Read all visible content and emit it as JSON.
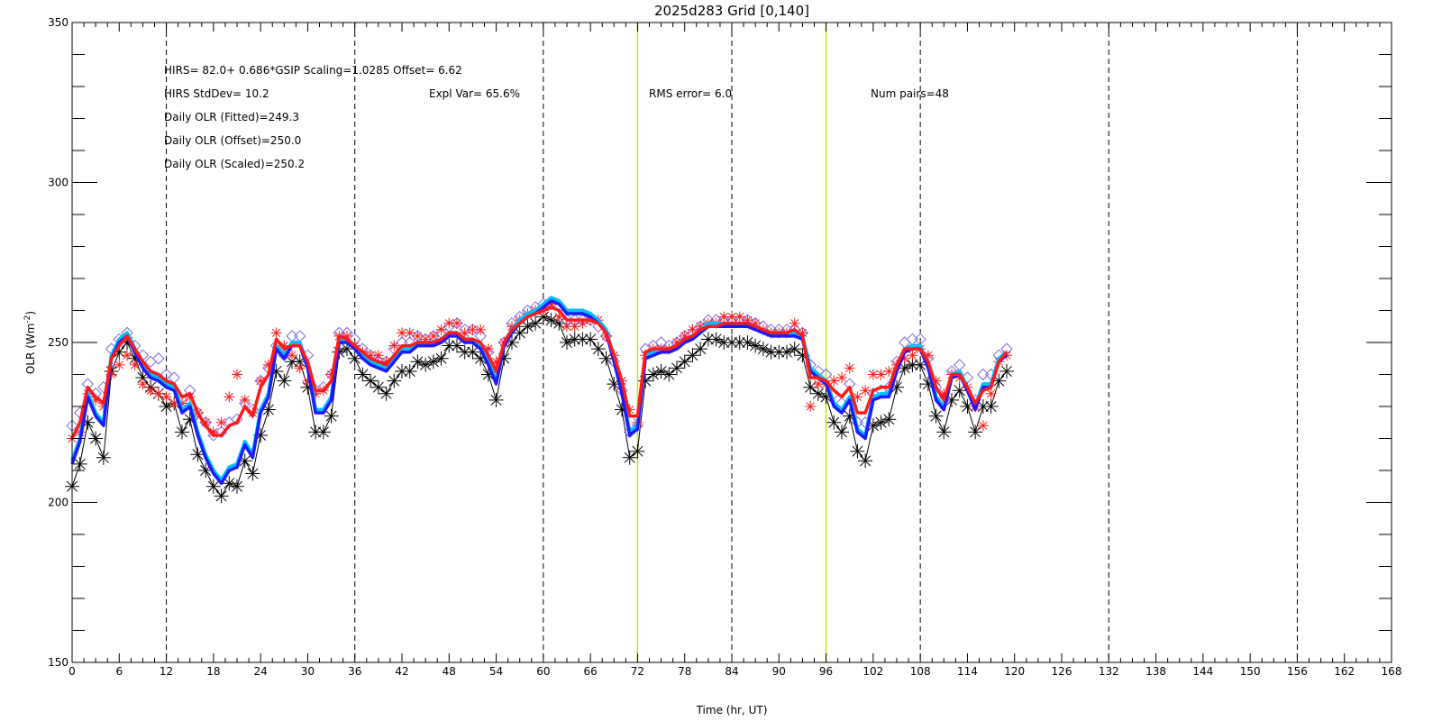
{
  "chart_data": {
    "type": "line",
    "title": "2025d283 Grid [0,140]",
    "xlabel": "Time (hr, UT)",
    "ylabel": "OLR (Wm",
    "ylabel_sup": "-2",
    "ylabel_close": ")",
    "xlim": [
      0,
      168
    ],
    "ylim": [
      150,
      350
    ],
    "x_ticks": [
      0,
      6,
      12,
      18,
      24,
      30,
      36,
      42,
      48,
      54,
      60,
      66,
      72,
      78,
      84,
      90,
      96,
      102,
      108,
      114,
      120,
      126,
      132,
      138,
      144,
      150,
      156,
      162,
      168
    ],
    "y_ticks": [
      150,
      200,
      250,
      300,
      350
    ],
    "dashed_vlines": [
      12,
      36,
      60,
      84,
      108,
      132,
      156
    ],
    "green_vlines": [
      72,
      96
    ],
    "annotations": [
      "HIRS=   82.0+  0.686*GSIP  Scaling=1.0285  Offset=  6.62",
      "HIRS StdDev= 10.2",
      "Expl Var= 65.6%",
      "RMS error=  6.0",
      "Num pairs=48",
      "Daily OLR (Fitted)=249.3",
      "Daily OLR (Offset)=250.0",
      "Daily OLR (Scaled)=250.2"
    ],
    "colors": {
      "blue_line": "#1a1aff",
      "cyan_line": "#00bfff",
      "red_line": "#ff1a1a",
      "purple_markers": "#7b68ee",
      "black_markers": "#000000",
      "green_vline": "#b8e61a"
    },
    "x": [
      0,
      1,
      2,
      3,
      4,
      5,
      6,
      7,
      8,
      9,
      10,
      11,
      12,
      13,
      14,
      15,
      16,
      17,
      18,
      19,
      20,
      21,
      22,
      23,
      24,
      25,
      26,
      27,
      28,
      29,
      30,
      31,
      32,
      33,
      34,
      35,
      36,
      37,
      38,
      39,
      40,
      41,
      42,
      43,
      44,
      45,
      46,
      47,
      48,
      49,
      50,
      51,
      52,
      53,
      54,
      55,
      56,
      57,
      58,
      59,
      60,
      61,
      62,
      63,
      64,
      65,
      66,
      67,
      68,
      69,
      70,
      71,
      72,
      73,
      74,
      75,
      76,
      77,
      78,
      79,
      80,
      81,
      82,
      83,
      84,
      85,
      86,
      87,
      88,
      89,
      90,
      91,
      92,
      93,
      94,
      95,
      96,
      97,
      98,
      99,
      100,
      101,
      102,
      103,
      104,
      105,
      106,
      107,
      108,
      109,
      110,
      111,
      112,
      113,
      114,
      115,
      116,
      117,
      118,
      119
    ],
    "series": [
      {
        "style": "black-asterisk-thin-line",
        "values": [
          205,
          212,
          225,
          220,
          214,
          241,
          247,
          250,
          245,
          239,
          236,
          234,
          230,
          231,
          222,
          226,
          215,
          210,
          205,
          202,
          206,
          205,
          213,
          209,
          221,
          229,
          241,
          238,
          244,
          244,
          236,
          222,
          222,
          227,
          247,
          248,
          245,
          240,
          238,
          236,
          234,
          238,
          241,
          241,
          244,
          243,
          244,
          245,
          249,
          249,
          247,
          247,
          245,
          240,
          232,
          245,
          250,
          253,
          255,
          256,
          258,
          257,
          256,
          250,
          251,
          251,
          251,
          248,
          245,
          237,
          229,
          214,
          216,
          238,
          240,
          241,
          240,
          242,
          244,
          246,
          248,
          251,
          251,
          250,
          250,
          250,
          250,
          249,
          248,
          247,
          247,
          247,
          248,
          246,
          236,
          234,
          233,
          225,
          222,
          227,
          216,
          213,
          224,
          225,
          226,
          236,
          242,
          243,
          243,
          237,
          227,
          222,
          232,
          235,
          230,
          222,
          230,
          230,
          238,
          241
        ]
      },
      {
        "style": "purple-diamond",
        "values": [
          224,
          228,
          237,
          234,
          236,
          248,
          251,
          253,
          249,
          246,
          244,
          245,
          240,
          239,
          232,
          235,
          228,
          225,
          221,
          222,
          225,
          226,
          231,
          229,
          238,
          242,
          249,
          246,
          252,
          252,
          246,
          235,
          236,
          240,
          253,
          253,
          251,
          248,
          246,
          244,
          244,
          248,
          250,
          250,
          252,
          251,
          252,
          253,
          255,
          256,
          254,
          254,
          252,
          247,
          242,
          250,
          256,
          258,
          260,
          261,
          262,
          262,
          261,
          257,
          257,
          257,
          257,
          255,
          252,
          244,
          235,
          222,
          224,
          248,
          249,
          250,
          249,
          250,
          252,
          253,
          255,
          257,
          257,
          257,
          257,
          257,
          257,
          256,
          255,
          254,
          254,
          254,
          254,
          253,
          243,
          241,
          240,
          234,
          231,
          237,
          225,
          225,
          234,
          235,
          236,
          244,
          250,
          251,
          251,
          245,
          236,
          232,
          241,
          243,
          239,
          232,
          240,
          240,
          246,
          248
        ]
      },
      {
        "style": "red-asterisk",
        "values": [
          220,
          222,
          234,
          232,
          230,
          240,
          243,
          246,
          243,
          237,
          235,
          234,
          233,
          231,
          231,
          233,
          228,
          225,
          222,
          225,
          233,
          240,
          232,
          228,
          238,
          243,
          253,
          249,
          246,
          242,
          238,
          234,
          235,
          240,
          252,
          252,
          249,
          247,
          246,
          246,
          244,
          249,
          253,
          253,
          252,
          251,
          252,
          254,
          256,
          256,
          253,
          254,
          254,
          248,
          244,
          250,
          255,
          257,
          259,
          260,
          260,
          262,
          258,
          255,
          255,
          256,
          257,
          257,
          252,
          246,
          238,
          229,
          225,
          246,
          248,
          248,
          248,
          250,
          252,
          254,
          255,
          256,
          256,
          258,
          258,
          258,
          257,
          256,
          254,
          253,
          253,
          253,
          256,
          253,
          230,
          237,
          237,
          238,
          239,
          242,
          233,
          235,
          240,
          240,
          241,
          243,
          245,
          246,
          248,
          246,
          238,
          234,
          240,
          239,
          236,
          230,
          224,
          234,
          244,
          246
        ]
      },
      {
        "style": "cyan-thick-line",
        "values": [
          213,
          220,
          234,
          228,
          225,
          246,
          251,
          253,
          248,
          243,
          240,
          239,
          237,
          236,
          229,
          231,
          222,
          215,
          210,
          207,
          211,
          212,
          219,
          215,
          229,
          234,
          249,
          246,
          250,
          250,
          243,
          229,
          229,
          233,
          251,
          251,
          249,
          246,
          244,
          243,
          242,
          245,
          248,
          248,
          250,
          250,
          250,
          251,
          253,
          253,
          251,
          251,
          249,
          244,
          238,
          250,
          254,
          257,
          259,
          260,
          262,
          264,
          263,
          260,
          260,
          260,
          259,
          257,
          254,
          245,
          235,
          222,
          224,
          246,
          247,
          248,
          248,
          249,
          251,
          252,
          254,
          256,
          256,
          256,
          256,
          256,
          256,
          255,
          254,
          253,
          253,
          253,
          253,
          252,
          242,
          240,
          238,
          231,
          229,
          233,
          223,
          221,
          233,
          234,
          234,
          242,
          248,
          249,
          249,
          243,
          233,
          230,
          240,
          241,
          236,
          230,
          237,
          237,
          245,
          247
        ]
      },
      {
        "style": "blue-thick-line",
        "values": [
          212,
          219,
          233,
          227,
          224,
          245,
          250,
          252,
          247,
          242,
          239,
          238,
          236,
          235,
          228,
          230,
          221,
          214,
          209,
          206,
          210,
          211,
          218,
          214,
          228,
          233,
          248,
          245,
          249,
          249,
          242,
          228,
          228,
          232,
          250,
          250,
          248,
          245,
          243,
          242,
          241,
          244,
          247,
          247,
          249,
          249,
          249,
          250,
          252,
          252,
          250,
          250,
          248,
          243,
          237,
          249,
          253,
          256,
          258,
          259,
          261,
          263,
          262,
          259,
          259,
          259,
          258,
          256,
          253,
          244,
          234,
          221,
          223,
          245,
          246,
          247,
          247,
          248,
          250,
          251,
          253,
          255,
          255,
          255,
          255,
          255,
          255,
          254,
          253,
          252,
          252,
          252,
          252,
          251,
          241,
          239,
          237,
          230,
          228,
          232,
          222,
          220,
          232,
          233,
          233,
          241,
          247,
          248,
          248,
          242,
          232,
          229,
          239,
          240,
          235,
          229,
          236,
          236,
          244,
          246
        ]
      },
      {
        "style": "red-thick-line",
        "values": [
          220,
          225,
          236,
          233,
          231,
          245,
          249,
          252,
          248,
          244,
          241,
          240,
          238,
          237,
          233,
          234,
          228,
          224,
          221,
          221,
          224,
          225,
          230,
          227,
          236,
          240,
          251,
          248,
          249,
          249,
          244,
          235,
          235,
          238,
          252,
          251,
          249,
          247,
          245,
          244,
          243,
          246,
          249,
          249,
          250,
          250,
          250,
          251,
          253,
          253,
          251,
          251,
          250,
          246,
          241,
          250,
          254,
          256,
          258,
          259,
          260,
          261,
          260,
          257,
          257,
          257,
          257,
          256,
          253,
          246,
          238,
          227,
          227,
          247,
          248,
          248,
          248,
          249,
          251,
          252,
          254,
          255,
          255,
          256,
          256,
          256,
          256,
          255,
          254,
          253,
          253,
          253,
          254,
          252,
          239,
          239,
          238,
          235,
          233,
          236,
          228,
          228,
          235,
          236,
          236,
          243,
          248,
          248,
          248,
          244,
          236,
          232,
          240,
          240,
          236,
          231,
          235,
          236,
          244,
          247
        ]
      }
    ]
  }
}
